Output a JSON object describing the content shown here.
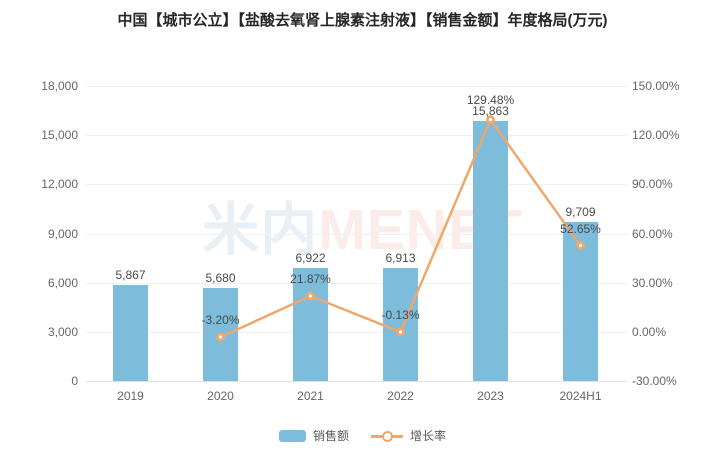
{
  "title": "中国【城市公立】【盐酸去氧肾上腺素注射液】【销售金额】年度格局(万元)",
  "watermark": {
    "part1": "米内",
    "part2": "MENET"
  },
  "legend": {
    "sales_label": "销售额",
    "growth_label": "增长率"
  },
  "colors": {
    "bar": "#7dbcdb",
    "line": "#f0a76b",
    "title_text": "#262626",
    "axis_text": "#666666",
    "data_label_text": "#4a4a4a",
    "gridline": "#f0f0f0",
    "baseline": "#e2e2e2",
    "watermark_cn": "#e9f0f5",
    "watermark_en": "#fbece8"
  },
  "chart_data": {
    "type": "bar",
    "title": "中国【城市公立】【盐酸去氧肾上腺素注射液】【销售金额】年度格局(万元)",
    "categories": [
      "2019",
      "2020",
      "2021",
      "2022",
      "2023",
      "2024H1"
    ],
    "series": [
      {
        "name": "销售额",
        "type": "bar",
        "axis": "left",
        "values": [
          5867,
          5680,
          6922,
          6913,
          15863,
          9709
        ],
        "labels": [
          "5,867",
          "5,680",
          "6,922",
          "6,913",
          "15,863",
          "9,709"
        ]
      },
      {
        "name": "增长率",
        "type": "line",
        "axis": "right",
        "values": [
          null,
          -3.2,
          21.87,
          -0.13,
          129.48,
          52.65
        ],
        "labels": [
          null,
          "-3.20%",
          "21.87%",
          "-0.13%",
          "129.48%",
          "52.65%"
        ]
      }
    ],
    "left_axis": {
      "min": 0,
      "max": 18000,
      "step": 3000,
      "tick_labels": [
        "0",
        "3,000",
        "6,000",
        "9,000",
        "12,000",
        "15,000",
        "18,000"
      ]
    },
    "right_axis": {
      "min": -30,
      "max": 150,
      "step": 30,
      "tick_labels": [
        "-30.00%",
        "0.00%",
        "30.00%",
        "60.00%",
        "90.00%",
        "120.00%",
        "150.00%"
      ]
    },
    "grid": true,
    "legend_position": "bottom"
  }
}
